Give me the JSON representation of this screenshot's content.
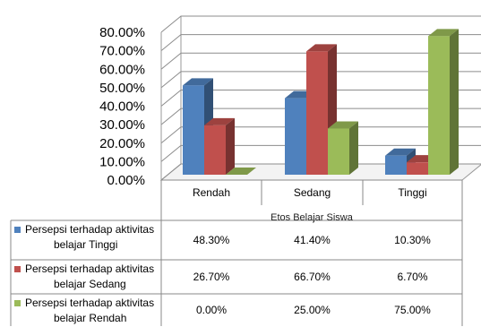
{
  "chart_data": {
    "type": "bar",
    "categories": [
      "Rendah",
      "Sedang",
      "Tinggi"
    ],
    "xlabel": "Etos Belajar Siswa",
    "ylabel": "",
    "ylim": [
      0,
      80
    ],
    "y_ticks": [
      "0.00%",
      "10.00%",
      "20.00%",
      "30.00%",
      "40.00%",
      "50.00%",
      "60.00%",
      "70.00%",
      "80.00%"
    ],
    "grid": true,
    "legend": "data-table-bottom",
    "series": [
      {
        "name": "Persepsi terhadap aktivitas belajar Tinggi",
        "legend_lines": [
          "Persepsi terhadap aktivitas",
          "belajar Tinggi"
        ],
        "color": "#4F81BD",
        "values": [
          48.3,
          41.4,
          10.3
        ],
        "labels": [
          "48.30%",
          "41.40%",
          "10.30%"
        ]
      },
      {
        "name": "Persepsi terhadap aktivitas belajar Sedang",
        "legend_lines": [
          "Persepsi terhadap aktivitas",
          "belajar Sedang"
        ],
        "color": "#C0504D",
        "values": [
          26.7,
          66.7,
          6.7
        ],
        "labels": [
          "26.70%",
          "66.70%",
          "6.70%"
        ]
      },
      {
        "name": "Persepsi terhadap aktivitas belajar Rendah",
        "legend_lines": [
          "Persepsi terhadap aktivitas",
          "belajar Rendah"
        ],
        "color": "#9BBB59",
        "values": [
          0.0,
          25.0,
          75.0
        ],
        "labels": [
          "0.00%",
          "25.00%",
          "75.00%"
        ]
      }
    ]
  }
}
